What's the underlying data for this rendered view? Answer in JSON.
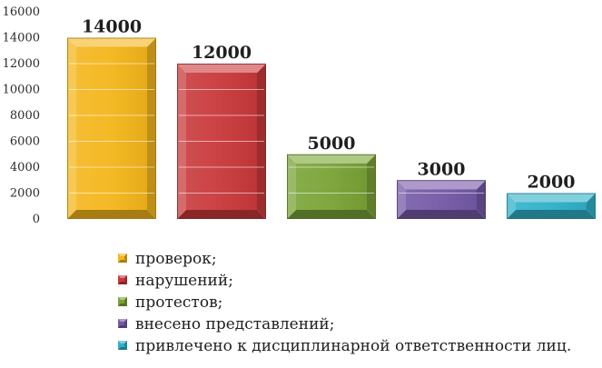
{
  "chart_data": {
    "type": "bar",
    "style": "3d-bevel",
    "title": "",
    "xlabel": "",
    "ylabel": "",
    "ylim": [
      0,
      16000
    ],
    "yticks": [
      0,
      2000,
      4000,
      6000,
      8000,
      10000,
      12000,
      14000,
      16000
    ],
    "ytick_labels": [
      "0",
      "2000",
      "4000",
      "6000",
      "8000",
      "10000",
      "12000",
      "14000",
      "16000"
    ],
    "grid": false,
    "legend_position": "bottom",
    "categories": [
      "проверок;",
      "нарушений;",
      "протестов;",
      "внесено представлений;",
      "привлечено к дисциплинарной ответственности лиц."
    ],
    "values": [
      14000,
      12000,
      5000,
      3000,
      2000
    ],
    "data_labels": [
      "14000",
      "12000",
      "5000",
      "3000",
      "2000"
    ],
    "colors": [
      "#f4b61c",
      "#c9393b",
      "#7aa336",
      "#7459a6",
      "#2fb1c8"
    ]
  }
}
